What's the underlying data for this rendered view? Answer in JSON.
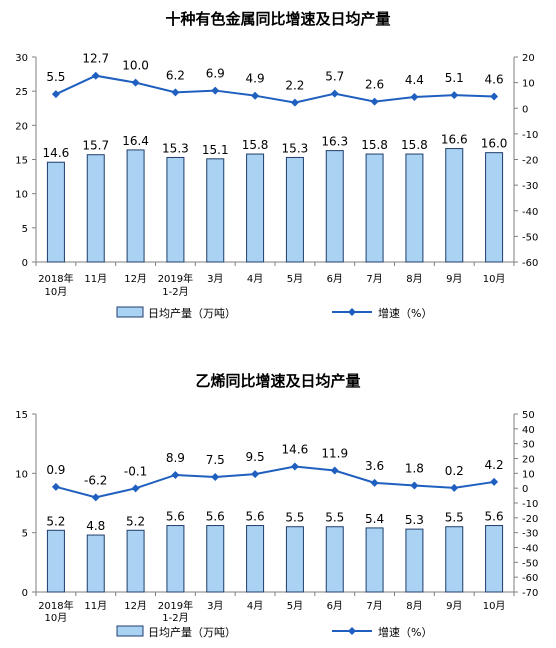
{
  "colors": {
    "bar_fill": "#a9d2f3",
    "bar_stroke": "#1f3d6b",
    "line": "#1f5fbf",
    "axis": "#7f7f7f",
    "text": "#000000"
  },
  "chart_data": [
    {
      "type": "bar+line",
      "title": "十种有色金属同比增速及日均产量",
      "categories": [
        [
          "2018年",
          "10月"
        ],
        [
          "11月"
        ],
        [
          "12月"
        ],
        [
          "2019年",
          "1-2月"
        ],
        [
          "3月"
        ],
        [
          "4月"
        ],
        [
          "5月"
        ],
        [
          "6月"
        ],
        [
          "7月"
        ],
        [
          "8月"
        ],
        [
          "9月"
        ],
        [
          "10月"
        ]
      ],
      "series": [
        {
          "name": "日均产量（万吨）",
          "kind": "bar",
          "axis": "left",
          "values": [
            14.6,
            15.7,
            16.4,
            15.3,
            15.1,
            15.8,
            15.3,
            16.3,
            15.8,
            15.8,
            16.6,
            16.0
          ]
        },
        {
          "name": "增速（%）",
          "kind": "line",
          "axis": "right",
          "values": [
            5.5,
            12.7,
            10.0,
            6.2,
            6.9,
            4.9,
            2.2,
            5.7,
            2.6,
            4.4,
            5.1,
            4.6
          ]
        }
      ],
      "left_axis": {
        "min": 0,
        "max": 30,
        "step": 5
      },
      "right_axis": {
        "min": -60,
        "max": 20,
        "step": 10
      },
      "legend_position": "bottom",
      "grid": false
    },
    {
      "type": "bar+line",
      "title": "乙烯同比增速及日均产量",
      "categories": [
        [
          "2018年",
          "10月"
        ],
        [
          "11月"
        ],
        [
          "12月"
        ],
        [
          "2019年",
          "1-2月"
        ],
        [
          "3月"
        ],
        [
          "4月"
        ],
        [
          "5月"
        ],
        [
          "6月"
        ],
        [
          "7月"
        ],
        [
          "8月"
        ],
        [
          "9月"
        ],
        [
          "10月"
        ]
      ],
      "series": [
        {
          "name": "日均产量（万吨）",
          "kind": "bar",
          "axis": "left",
          "values": [
            5.2,
            4.8,
            5.2,
            5.6,
            5.6,
            5.6,
            5.5,
            5.5,
            5.4,
            5.3,
            5.5,
            5.6
          ]
        },
        {
          "name": "增速（%）",
          "kind": "line",
          "axis": "right",
          "values": [
            0.9,
            -6.2,
            -0.1,
            8.9,
            7.5,
            9.5,
            14.6,
            11.9,
            3.6,
            1.8,
            0.2,
            4.2
          ]
        }
      ],
      "left_axis": {
        "min": 0,
        "max": 15,
        "step": 5
      },
      "right_axis": {
        "min": -70,
        "max": 50,
        "step": 10
      },
      "legend_position": "bottom",
      "grid": false
    }
  ]
}
